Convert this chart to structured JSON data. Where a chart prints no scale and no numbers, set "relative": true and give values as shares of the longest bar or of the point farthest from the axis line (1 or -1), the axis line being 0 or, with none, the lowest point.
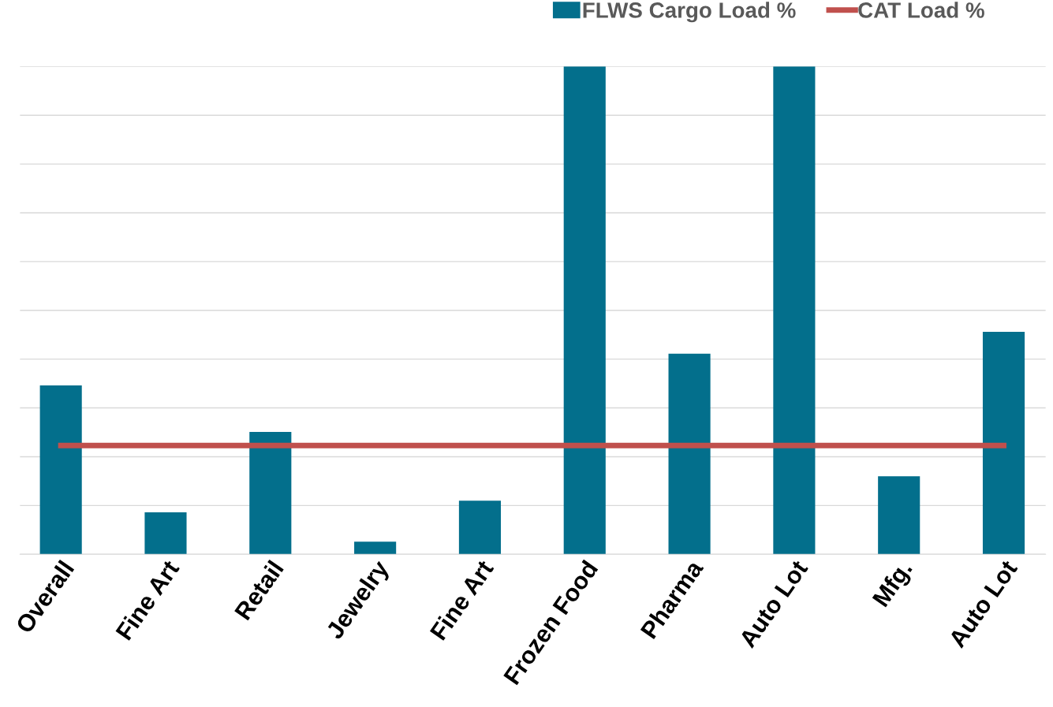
{
  "chart_data": {
    "type": "bar",
    "relative": true,
    "categories": [
      "Overall",
      "Fine Art",
      "Retail",
      "Jewelry",
      "Fine Art",
      "Frozen Food",
      "Pharma",
      "Auto Lot",
      "Mfg.",
      "Auto Lot"
    ],
    "series": [
      {
        "name": "FLWS Cargo Load %",
        "color": "#036f8c",
        "values": [
          0.346,
          0.086,
          0.251,
          0.026,
          0.11,
          1,
          0.411,
          1,
          0.16,
          0.456
        ]
      },
      {
        "name": "CAT Load %",
        "type": "line",
        "color": "#c0504d",
        "values": [
          0.223,
          0.223,
          0.223,
          0.223,
          0.223,
          0.223,
          0.223,
          0.223,
          0.223,
          0.223
        ]
      }
    ],
    "grid": "y",
    "legend": "top right",
    "marker": "none",
    "line_style": "solid"
  }
}
